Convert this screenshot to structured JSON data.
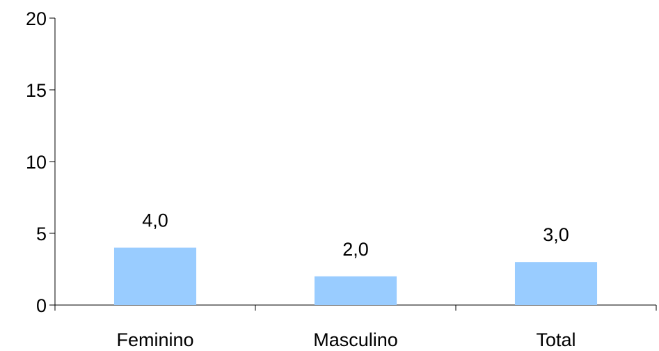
{
  "chart_data": {
    "type": "bar",
    "title": "",
    "xlabel": "",
    "ylabel": "",
    "categories": [
      "Feminino",
      "Masculino",
      "Total"
    ],
    "values": [
      4.0,
      2.0,
      3.0
    ],
    "data_labels": [
      "4,0",
      "2,0",
      "3,0"
    ],
    "ylim": [
      0,
      20
    ],
    "yticks": [
      0,
      5,
      10,
      15,
      20
    ],
    "ytick_labels": [
      "0",
      "5",
      "10",
      "15",
      "20"
    ],
    "grid": false,
    "legend": "none",
    "bar_color": "#99CCFF"
  }
}
